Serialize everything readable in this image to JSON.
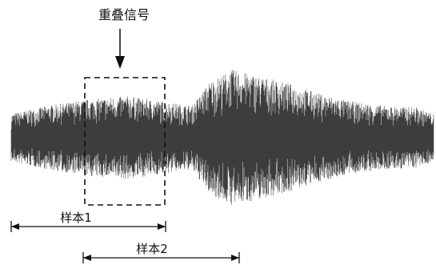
{
  "annotation": {
    "overlap_label": "重叠信号"
  },
  "samples": [
    {
      "label": "样本1"
    },
    {
      "label": "样本2"
    }
  ],
  "colors": {
    "waveform": "#3d3d3d",
    "ink": "#111111",
    "background": "#ffffff"
  }
}
